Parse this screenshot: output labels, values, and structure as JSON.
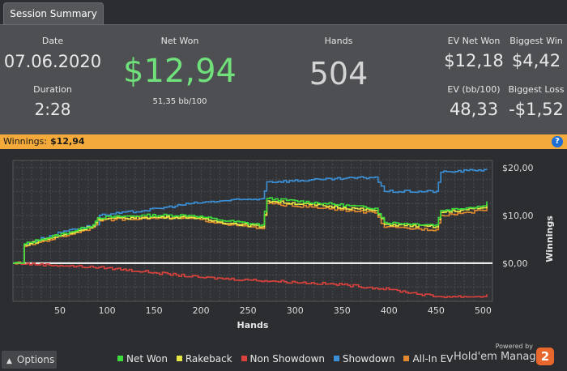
{
  "tab": {
    "label": "Session Summary"
  },
  "summary": {
    "date_label": "Date",
    "date_value": "07.06.2020",
    "duration_label": "Duration",
    "duration_value": "2:28",
    "net_won_label": "Net Won",
    "net_won_value": "$12,94",
    "net_won_sub": "51,35 bb/100",
    "hands_label": "Hands",
    "hands_value": "504",
    "ev_net_won_label": "EV Net Won",
    "ev_net_won_value": "$12,18",
    "biggest_win_label": "Biggest Win",
    "biggest_win_value": "$4,42",
    "ev_bb_label": "EV (bb/100)",
    "ev_bb_value": "48,33",
    "biggest_loss_label": "Biggest Loss",
    "biggest_loss_value": "-$1,52"
  },
  "winnings_bar": {
    "label": "Winnings:",
    "value": "$12,94",
    "help": "?"
  },
  "options": {
    "label": "Options"
  },
  "colors": {
    "net_won": "#3ddc3d",
    "rakeback": "#e8e845",
    "non_showdown": "#d8413c",
    "showdown": "#3a8fd6",
    "all_in_ev": "#e0892e",
    "accent": "#f4a93b"
  },
  "chart_data": {
    "type": "line",
    "xlabel": "Hands",
    "ylabel": "Winnings",
    "xlim": [
      0,
      510
    ],
    "ylim": [
      -8,
      21.5
    ],
    "x_ticks": [
      50,
      100,
      150,
      200,
      250,
      300,
      350,
      400,
      450,
      500
    ],
    "x_tick_labels": [
      "50",
      "100",
      "150",
      "200",
      "250",
      "300",
      "350",
      "400",
      "450",
      "500"
    ],
    "y_ticks": [
      0,
      10,
      20
    ],
    "y_tick_labels": [
      "$0,00",
      "$10,00",
      "$20,00"
    ],
    "grid": true,
    "legend": "bottom",
    "series": [
      {
        "name": "Net Won",
        "key": "net_won",
        "x": [
          0,
          8,
          12,
          30,
          60,
          85,
          90,
          140,
          190,
          220,
          265,
          270,
          330,
          385,
          395,
          450,
          455,
          500,
          504
        ],
        "y": [
          0,
          0,
          4,
          5,
          6.5,
          8,
          9.5,
          10,
          10,
          9,
          8,
          13.5,
          12.5,
          11.5,
          8.5,
          8,
          11,
          12,
          12.94
        ]
      },
      {
        "name": "Rakeback",
        "key": "rakeback",
        "x": [
          0,
          8,
          12,
          30,
          60,
          85,
          90,
          140,
          190,
          220,
          265,
          270,
          330,
          385,
          395,
          450,
          455,
          500,
          504
        ],
        "y": [
          0,
          0,
          3.8,
          4.8,
          6.2,
          7.8,
          9.2,
          9.6,
          9.6,
          8.6,
          7.6,
          13,
          12,
          11,
          8.1,
          7.6,
          10.6,
          11.6,
          12.4
        ]
      },
      {
        "name": "Non Showdown",
        "key": "non_showdown",
        "x": [
          0,
          50,
          100,
          150,
          200,
          250,
          300,
          350,
          400,
          450,
          500,
          504
        ],
        "y": [
          0,
          -0.5,
          -1,
          -2,
          -3,
          -3.5,
          -4,
          -4.5,
          -5.5,
          -7,
          -7,
          -6.5
        ]
      },
      {
        "name": "Showdown",
        "key": "showdown",
        "x": [
          0,
          8,
          12,
          60,
          88,
          92,
          140,
          190,
          220,
          265,
          270,
          330,
          385,
          395,
          450,
          455,
          495,
          504
        ],
        "y": [
          0,
          0,
          4,
          7,
          8,
          10,
          11,
          12.5,
          13,
          13.5,
          17,
          17.5,
          18,
          15,
          15,
          19,
          19.5,
          19.5
        ]
      },
      {
        "name": "All-In EV",
        "key": "all_in_ev",
        "x": [
          0,
          8,
          12,
          30,
          60,
          85,
          90,
          140,
          190,
          220,
          265,
          270,
          330,
          385,
          395,
          450,
          455,
          500,
          504
        ],
        "y": [
          0,
          0,
          3.5,
          4.5,
          6,
          7.5,
          9,
          9.4,
          9.4,
          8.4,
          7.2,
          12.5,
          11.5,
          10.5,
          7.5,
          7,
          10,
          11,
          12.18
        ]
      }
    ]
  },
  "brand": {
    "powered_by": "Powered by",
    "name": "Hold'em Manager",
    "badge": "2"
  }
}
